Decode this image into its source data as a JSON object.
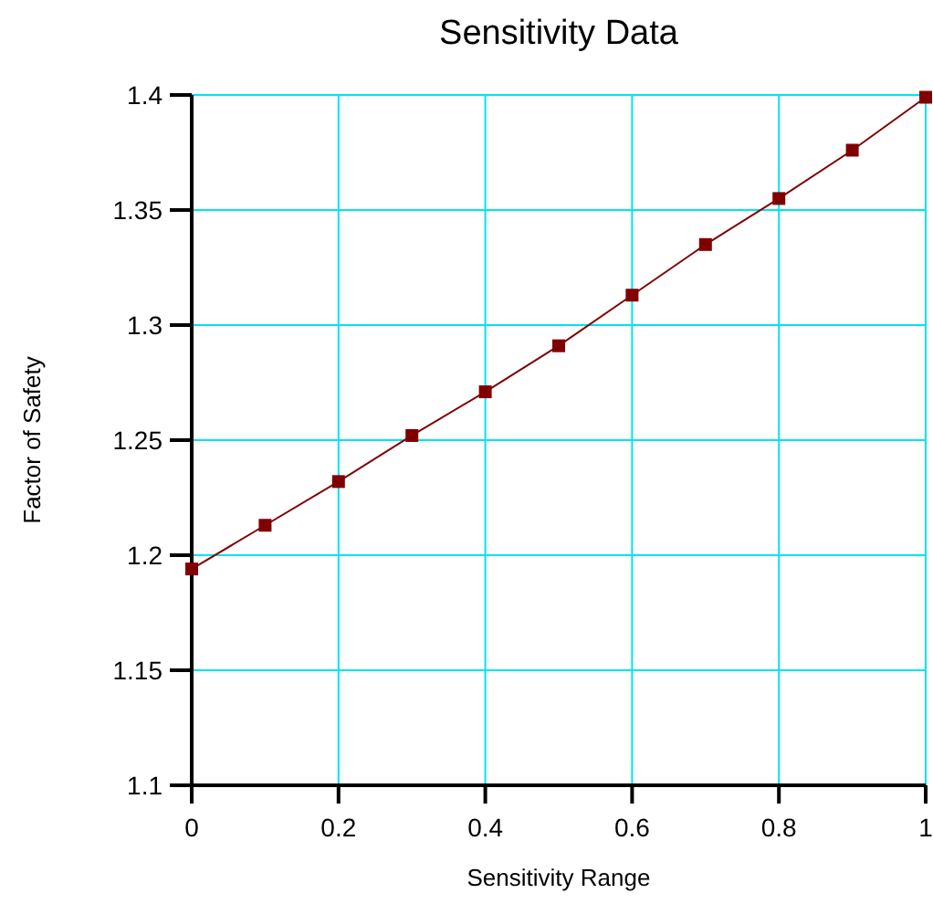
{
  "chart_data": {
    "type": "line",
    "title": "Sensitivity Data",
    "xlabel": "Sensitivity Range",
    "ylabel": "Factor of Safety",
    "x": [
      0,
      0.1,
      0.2,
      0.3,
      0.4,
      0.5,
      0.6,
      0.7,
      0.8,
      0.9,
      1
    ],
    "series": [
      {
        "color": "#800000",
        "values": [
          1.194,
          1.213,
          1.232,
          1.252,
          1.271,
          1.291,
          1.313,
          1.335,
          1.355,
          1.376,
          1.399
        ]
      }
    ],
    "xlim": [
      0,
      1
    ],
    "xticks": [
      0,
      0.2,
      0.4,
      0.6,
      0.8,
      1
    ],
    "ylim": [
      1.1,
      1.4
    ],
    "yticks": [
      1.1,
      1.15,
      1.2,
      1.25,
      1.3,
      1.35,
      1.4
    ],
    "grid": true,
    "marker": "square",
    "line_style": "solid"
  }
}
